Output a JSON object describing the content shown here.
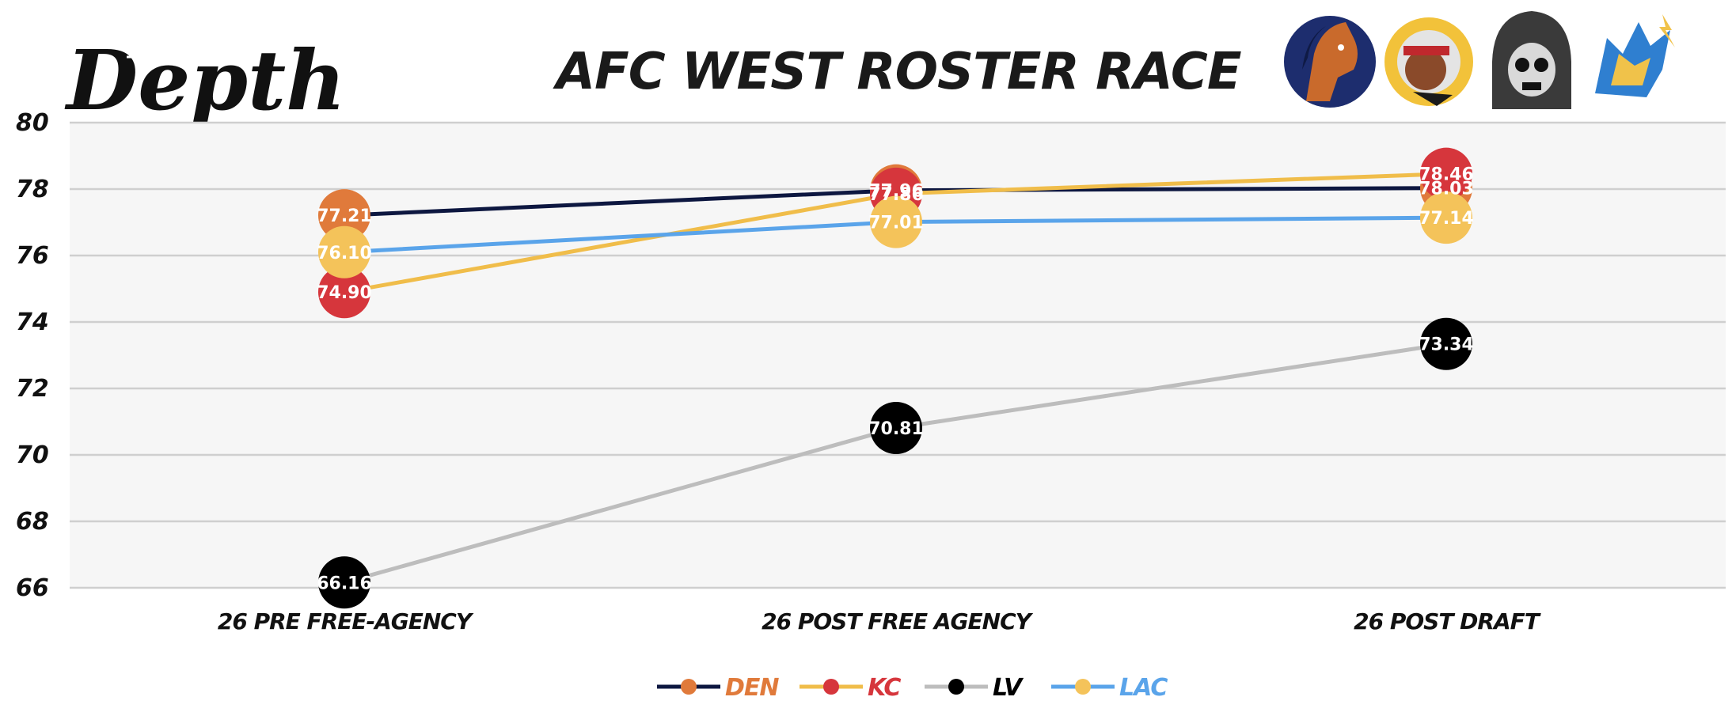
{
  "brand": {
    "logo_text": "Depth"
  },
  "team_icons": [
    "horse-mascot-icon",
    "chief-headdress-icon",
    "hooded-skull-icon",
    "lightning-wolf-icon"
  ],
  "chart_data": {
    "type": "line",
    "title": "AFC WEST ROSTER RACE",
    "categories": [
      "26 PRE FREE-AGENCY",
      "26 POST FREE AGENCY",
      "26 POST DRAFT"
    ],
    "ylim": [
      66,
      80
    ],
    "yticks": [
      66,
      68,
      70,
      72,
      74,
      76,
      78,
      80
    ],
    "grid": true,
    "legend_position": "bottom-center",
    "series": [
      {
        "name": "DEN",
        "values": [
          77.21,
          77.96,
          78.03
        ],
        "labels": [
          "77.21",
          "77.96",
          "78.03"
        ],
        "line_color": "#0d1740",
        "marker_color": "#e07a3b",
        "text_color": "#e07a3b"
      },
      {
        "name": "KC",
        "values": [
          74.9,
          77.86,
          78.46
        ],
        "labels": [
          "74.90",
          "77.86",
          "78.46"
        ],
        "line_color": "#f0bd4a",
        "marker_color": "#d6363c",
        "text_color": "#d6363c"
      },
      {
        "name": "LV",
        "values": [
          66.16,
          70.81,
          73.34
        ],
        "labels": [
          "66.16",
          "70.81",
          "73.34"
        ],
        "line_color": "#bdbdbd",
        "marker_color": "#000000",
        "text_color": "#000000"
      },
      {
        "name": "LAC",
        "values": [
          76.1,
          77.01,
          77.14
        ],
        "labels": [
          "76.10",
          "77.01",
          "77.14"
        ],
        "line_color": "#5aa4ea",
        "marker_color": "#f4c35a",
        "text_color": "#5aa4ea"
      }
    ]
  }
}
